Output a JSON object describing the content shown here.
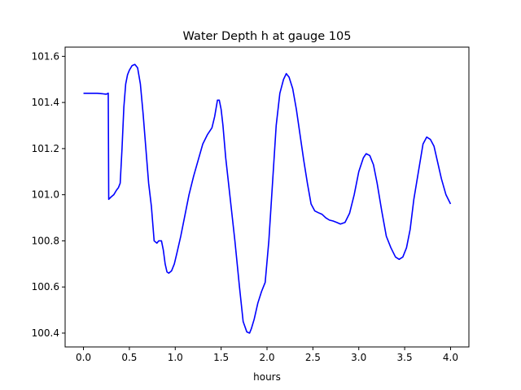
{
  "chart_data": {
    "type": "line",
    "title": "Water Depth h at gauge 105",
    "xlabel": "hours",
    "ylabel": "",
    "xlim": [
      -0.2,
      4.2
    ],
    "ylim": [
      100.34,
      101.64
    ],
    "x_ticks": [
      0.0,
      0.5,
      1.0,
      1.5,
      2.0,
      2.5,
      3.0,
      3.5,
      4.0
    ],
    "x_tick_labels": [
      "0.0",
      "0.5",
      "1.0",
      "1.5",
      "2.0",
      "2.5",
      "3.0",
      "3.5",
      "4.0"
    ],
    "y_ticks": [
      100.4,
      100.6,
      100.8,
      101.0,
      101.2,
      101.4,
      101.6
    ],
    "y_tick_labels": [
      "100.4",
      "100.6",
      "100.8",
      "101.0",
      "101.2",
      "101.4",
      "101.6"
    ],
    "grid": false,
    "series": [
      {
        "color": "#0000ff",
        "x": [
          0.0,
          0.1,
          0.15,
          0.2,
          0.25,
          0.27,
          0.275,
          0.3,
          0.33,
          0.36,
          0.38,
          0.4,
          0.42,
          0.44,
          0.46,
          0.48,
          0.5,
          0.53,
          0.56,
          0.59,
          0.62,
          0.65,
          0.68,
          0.71,
          0.74,
          0.77,
          0.8,
          0.82,
          0.85,
          0.87,
          0.89,
          0.91,
          0.93,
          0.96,
          0.99,
          1.02,
          1.06,
          1.1,
          1.15,
          1.2,
          1.25,
          1.3,
          1.35,
          1.4,
          1.43,
          1.46,
          1.48,
          1.5,
          1.52,
          1.55,
          1.6,
          1.65,
          1.7,
          1.74,
          1.78,
          1.81,
          1.83,
          1.86,
          1.9,
          1.94,
          1.98,
          2.02,
          2.06,
          2.1,
          2.14,
          2.18,
          2.21,
          2.24,
          2.28,
          2.32,
          2.36,
          2.4,
          2.44,
          2.48,
          2.52,
          2.56,
          2.6,
          2.64,
          2.68,
          2.72,
          2.76,
          2.8,
          2.85,
          2.9,
          2.95,
          3.0,
          3.05,
          3.08,
          3.12,
          3.16,
          3.2,
          3.25,
          3.3,
          3.35,
          3.4,
          3.44,
          3.48,
          3.52,
          3.56,
          3.6,
          3.65,
          3.7,
          3.74,
          3.78,
          3.82,
          3.86,
          3.9,
          3.95,
          4.0
        ],
        "y": [
          101.44,
          101.44,
          101.44,
          101.438,
          101.436,
          101.44,
          100.98,
          100.99,
          101.0,
          101.02,
          101.03,
          101.05,
          101.2,
          101.38,
          101.48,
          101.52,
          101.54,
          101.56,
          101.565,
          101.55,
          101.48,
          101.35,
          101.2,
          101.05,
          100.95,
          100.8,
          100.79,
          100.8,
          100.8,
          100.76,
          100.7,
          100.665,
          100.66,
          100.67,
          100.7,
          100.75,
          100.82,
          100.9,
          101.0,
          101.08,
          101.15,
          101.22,
          101.26,
          101.29,
          101.34,
          101.41,
          101.41,
          101.37,
          101.3,
          101.16,
          100.98,
          100.8,
          100.6,
          100.45,
          100.405,
          100.4,
          100.42,
          100.46,
          100.53,
          100.58,
          100.62,
          100.8,
          101.05,
          101.3,
          101.44,
          101.5,
          101.525,
          101.51,
          101.46,
          101.37,
          101.26,
          101.15,
          101.05,
          100.96,
          100.93,
          100.922,
          100.915,
          100.9,
          100.89,
          100.886,
          100.88,
          100.873,
          100.88,
          100.92,
          101.0,
          101.1,
          101.16,
          101.178,
          101.17,
          101.13,
          101.05,
          100.93,
          100.82,
          100.77,
          100.73,
          100.72,
          100.73,
          100.77,
          100.85,
          100.98,
          101.1,
          101.22,
          101.25,
          101.24,
          101.21,
          101.14,
          101.07,
          101.0,
          100.96
        ]
      }
    ]
  }
}
